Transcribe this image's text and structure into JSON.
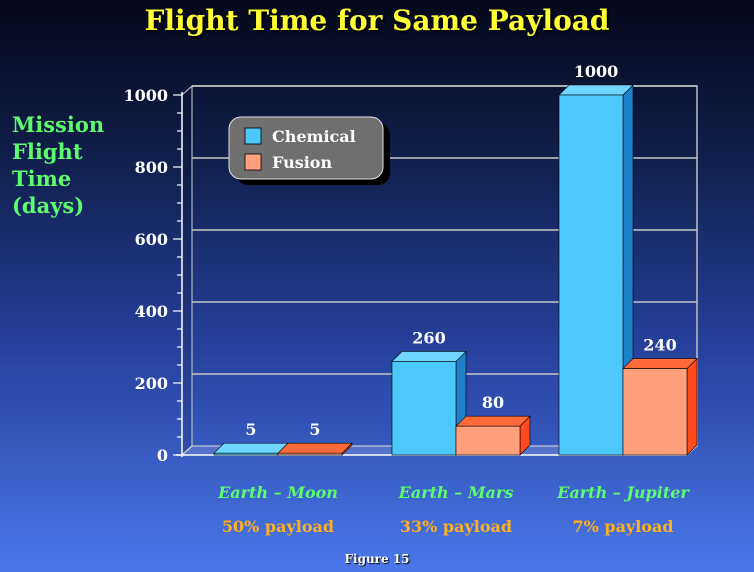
{
  "chart_data": {
    "type": "bar",
    "title": "Flight Time for Same Payload",
    "ylabel": [
      "Mission",
      "Flight",
      "Time",
      "(days)"
    ],
    "ylim": [
      0,
      1000
    ],
    "yticks": [
      0,
      200,
      400,
      600,
      800,
      1000
    ],
    "grid": true,
    "legend_position": "top-left",
    "categories": [
      "Earth – Moon",
      "Earth – Mars",
      "Earth – Jupiter"
    ],
    "sublabels": [
      "50% payload",
      "33% payload",
      "7% payload"
    ],
    "series": [
      {
        "name": "Chemical",
        "values": [
          5,
          260,
          1000
        ],
        "labels": [
          "5",
          "260",
          "1000"
        ],
        "color": "#4dc8fb",
        "side_color": "#1e80c8",
        "top_color": "#6fd6ff"
      },
      {
        "name": "Fusion",
        "values": [
          5,
          80,
          240
        ],
        "labels": [
          "5",
          "80",
          "240"
        ],
        "color": "#ff9f7c",
        "side_color": "#ff4a1e",
        "top_color": "#ff6a3a"
      }
    ]
  },
  "footer": "Figure 15"
}
